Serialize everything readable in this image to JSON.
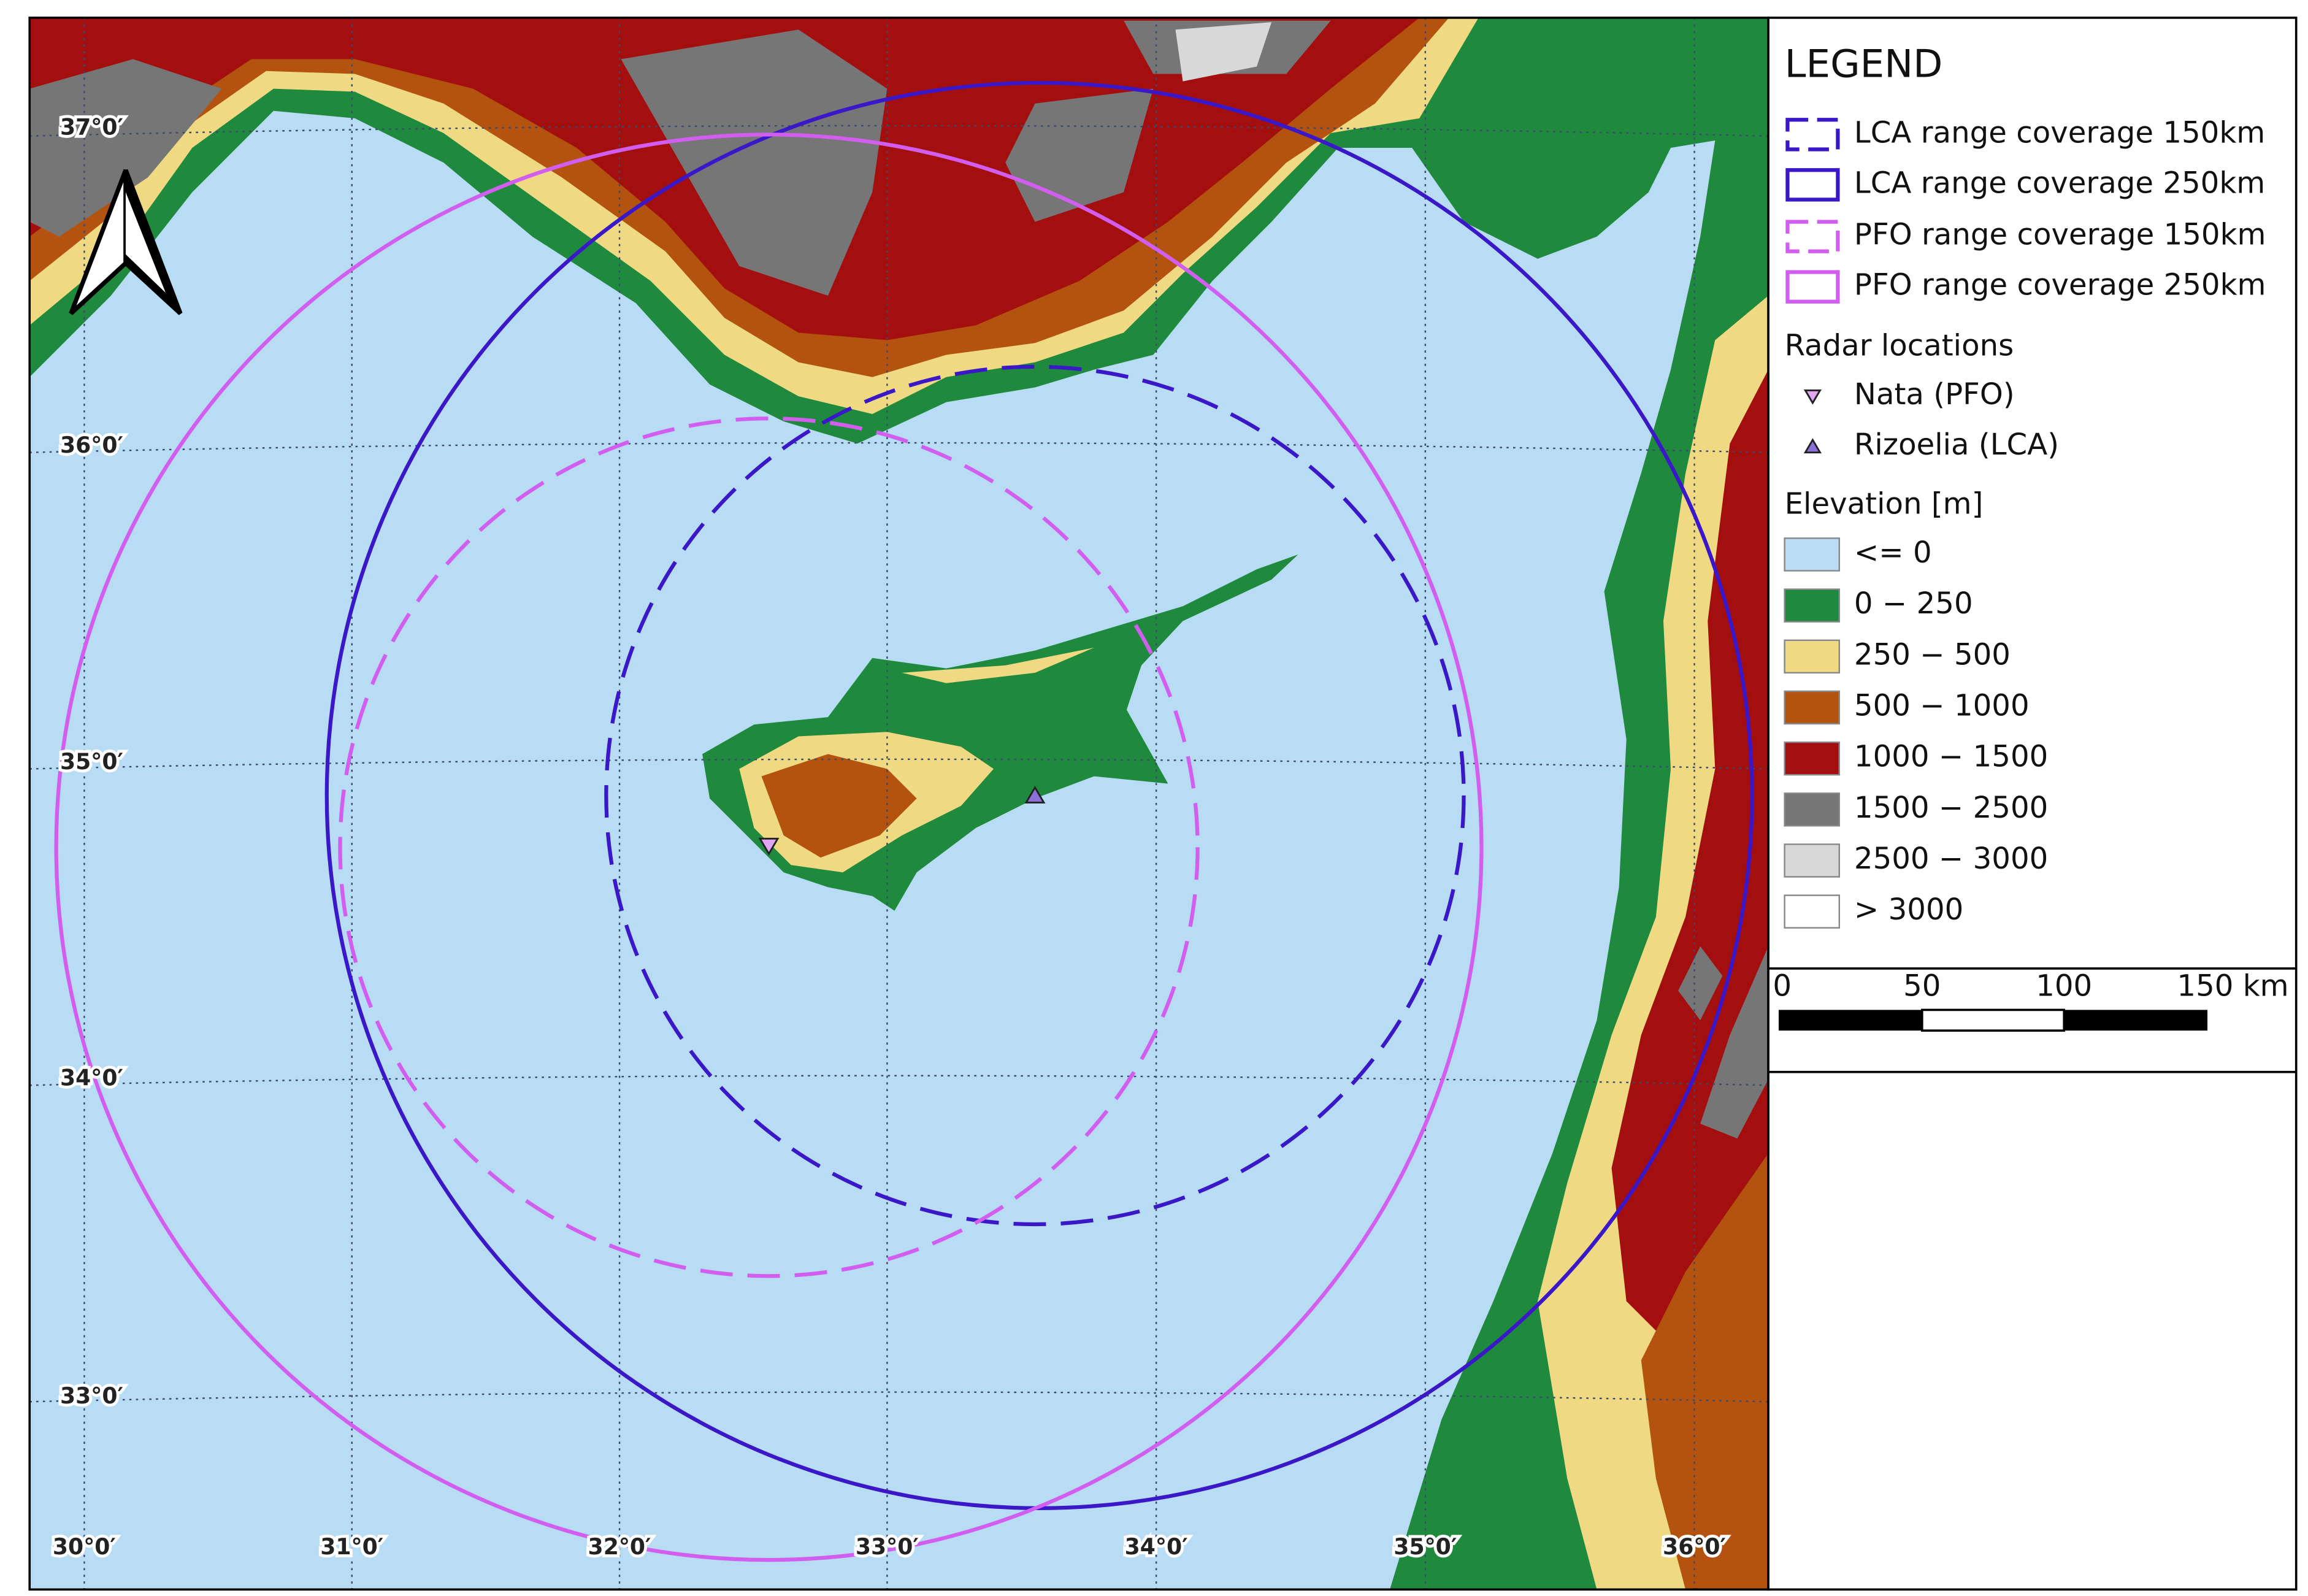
{
  "legend": {
    "title": "LEGEND",
    "coverage": [
      {
        "label": "LCA range coverage 150km",
        "color": "#3a18c8",
        "dashed": true
      },
      {
        "label": "LCA range coverage 250km",
        "color": "#3a18c8",
        "dashed": false
      },
      {
        "label": "PFO range coverage 150km",
        "color": "#d25ef0",
        "dashed": true
      },
      {
        "label": "PFO range coverage 250km",
        "color": "#d25ef0",
        "dashed": false
      }
    ],
    "radar_heading": "Radar locations",
    "radars": [
      {
        "label": "Nata (PFO)",
        "color": "#e0a6f2",
        "symbol": "down"
      },
      {
        "label": "Rizoelia (LCA)",
        "color": "#8c70d8",
        "symbol": "up"
      }
    ],
    "elevation_heading": "Elevation [m]",
    "elevation": [
      {
        "label": "<= 0",
        "color": "#b8dcf3"
      },
      {
        "label": "0 − 250",
        "color": "#1f8a3e"
      },
      {
        "label": "250 − 500",
        "color": "#efd982"
      },
      {
        "label": "500 − 1000",
        "color": "#b3530f"
      },
      {
        "label": "1000 − 1500",
        "color": "#a30e0e"
      },
      {
        "label": "1500 − 2500",
        "color": "#767676"
      },
      {
        "label": "2500 − 3000",
        "color": "#d8d8d8"
      },
      {
        "label": "> 3000",
        "color": "#ffffff"
      }
    ]
  },
  "scale_bar": {
    "labels": [
      "0",
      "50",
      "100",
      "150 km"
    ]
  },
  "graticule": {
    "lon_labels": [
      "30°0′",
      "31°0′",
      "32°0′",
      "33°0′",
      "34°0′",
      "35°0′",
      "36°0′"
    ],
    "lat_labels": [
      "37°0′",
      "36°0′",
      "35°0′",
      "34°0′",
      "33°0′"
    ]
  }
}
